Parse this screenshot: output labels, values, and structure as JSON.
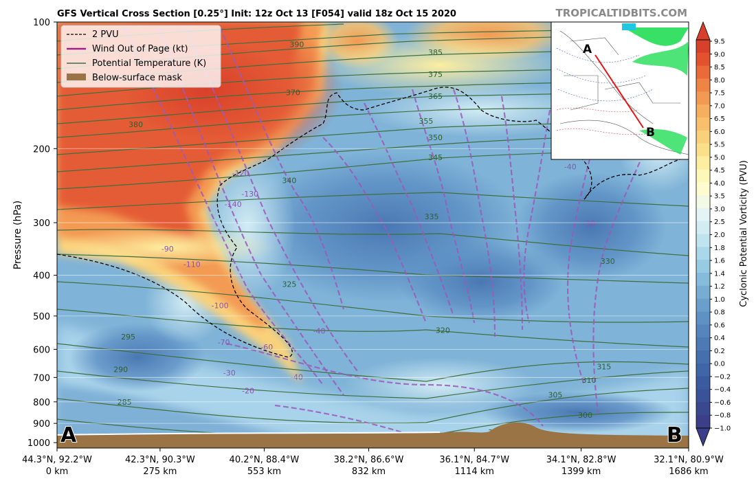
{
  "chart_data": {
    "type": "heatmap",
    "title": "GFS Vertical Cross Section [0.25°] Init: 12z Oct 13 [F054] valid 18z Oct 15 2020",
    "watermark": "TROPICALTIDBITS.COM",
    "ylabel": "Pressure (hPa)",
    "yscale": "log",
    "ylim": [
      1030,
      100
    ],
    "y_ticks": [
      100,
      200,
      300,
      400,
      500,
      600,
      700,
      800,
      900,
      1000
    ],
    "x_ticks": [
      {
        "coord": "44.3°N, 92.2°W",
        "dist": "0 km",
        "km": 0
      },
      {
        "coord": "42.3°N, 90.3°W",
        "dist": "275 km",
        "km": 275
      },
      {
        "coord": "40.2°N, 88.4°W",
        "dist": "553 km",
        "km": 553
      },
      {
        "coord": "38.2°N, 86.6°W",
        "dist": "832 km",
        "km": 832
      },
      {
        "coord": "36.1°N, 84.7°W",
        "dist": "1114 km",
        "km": 1114
      },
      {
        "coord": "34.1°N, 82.8°W",
        "dist": "1399 km",
        "km": 1399
      },
      {
        "coord": "32.1°N, 80.9°W",
        "dist": "1686 km",
        "km": 1686
      }
    ],
    "xlim": [
      0,
      1686
    ],
    "legend": {
      "position": "top-left",
      "entries": [
        {
          "label": "2 PVU",
          "style": "dashed",
          "color": "#000000"
        },
        {
          "label": "Wind Out of Page (kt)",
          "style": "solid",
          "color": "#a0208a"
        },
        {
          "label": "Potential Temperature (K)",
          "style": "solid",
          "color": "#3f6f3f"
        },
        {
          "label": "Below-surface mask",
          "style": "patch",
          "color": "#9a7445"
        }
      ]
    },
    "colorbar": {
      "label": "Cyclonic Potential Vorticity (PVU)",
      "ticks": [
        "9.5",
        "9.0",
        "8.5",
        "8.0",
        "7.5",
        "7.0",
        "6.5",
        "6.0",
        "5.5",
        "5.0",
        "4.5",
        "4.0",
        "3.5",
        "3.0",
        "2.5",
        "2.0",
        "1.8",
        "1.6",
        "1.4",
        "1.2",
        "1.0",
        "0.8",
        "0.6",
        "0.4",
        "0.2",
        "0.0",
        "−0.2",
        "−0.4",
        "−0.6",
        "−0.8",
        "−1.0"
      ],
      "colors": [
        "#d7402a",
        "#e3522f",
        "#ea6a3a",
        "#ef8445",
        "#f39a52",
        "#f6ae5f",
        "#f8c06c",
        "#fad17a",
        "#fbe08a",
        "#fdeea0",
        "#fdf7b8",
        "#fefbd0",
        "#f3f9e4",
        "#e4f3f5",
        "#d2ecf4",
        "#bfe3ef",
        "#aad8ea",
        "#97cbe2",
        "#86bcdb",
        "#77add3",
        "#6a9fcb",
        "#5f92c4",
        "#5585bc",
        "#4d79b4",
        "#4570ad",
        "#3f66a6",
        "#3a5c9f",
        "#3a5298",
        "#3a4890",
        "#3a3f88"
      ]
    },
    "section_endpoints": {
      "left": "A",
      "right": "B"
    },
    "theta_labels": [
      {
        "text": "385",
        "km": 1010,
        "p": 118
      },
      {
        "text": "375",
        "km": 1010,
        "p": 133
      },
      {
        "text": "365",
        "km": 1010,
        "p": 150
      },
      {
        "text": "355",
        "km": 985,
        "p": 172
      },
      {
        "text": "350",
        "km": 1010,
        "p": 188
      },
      {
        "text": "345",
        "km": 1010,
        "p": 210
      },
      {
        "text": "390",
        "km": 640,
        "p": 113
      },
      {
        "text": "370",
        "km": 630,
        "p": 147
      },
      {
        "text": "380",
        "km": 210,
        "p": 175
      },
      {
        "text": "340",
        "km": 620,
        "p": 238
      },
      {
        "text": "335",
        "km": 1000,
        "p": 290
      },
      {
        "text": "330",
        "km": 1470,
        "p": 370
      },
      {
        "text": "325",
        "km": 620,
        "p": 420
      },
      {
        "text": "320",
        "km": 1030,
        "p": 540
      },
      {
        "text": "315",
        "km": 1460,
        "p": 660
      },
      {
        "text": "310",
        "km": 1420,
        "p": 710
      },
      {
        "text": "305",
        "km": 1330,
        "p": 770
      },
      {
        "text": "300",
        "km": 1410,
        "p": 860
      },
      {
        "text": "300",
        "km": 1170,
        "p": 945
      },
      {
        "text": "295",
        "km": 190,
        "p": 560
      },
      {
        "text": "290",
        "km": 170,
        "p": 670
      },
      {
        "text": "285",
        "km": 180,
        "p": 800
      },
      {
        "text": "285",
        "km": 510,
        "p": 1010
      },
      {
        "text": "300",
        "km": 1560,
        "p": 1020
      }
    ],
    "wind_labels": [
      {
        "text": "-120",
        "km": 490,
        "p": 228
      },
      {
        "text": "-130",
        "km": 515,
        "p": 255
      },
      {
        "text": "-140",
        "km": 470,
        "p": 270
      },
      {
        "text": "-90",
        "km": 295,
        "p": 345
      },
      {
        "text": "-110",
        "km": 360,
        "p": 375
      },
      {
        "text": "-100",
        "km": 435,
        "p": 470
      },
      {
        "text": "-70",
        "km": 445,
        "p": 575
      },
      {
        "text": "-60",
        "km": 560,
        "p": 590
      },
      {
        "text": "-40",
        "km": 700,
        "p": 540
      },
      {
        "text": "-40",
        "km": 640,
        "p": 695
      },
      {
        "text": "-30",
        "km": 460,
        "p": 680
      },
      {
        "text": "-20",
        "km": 510,
        "p": 750
      },
      {
        "text": "-30",
        "km": 1420,
        "p": 300
      },
      {
        "text": "-40",
        "km": 1370,
        "p": 220
      }
    ]
  }
}
